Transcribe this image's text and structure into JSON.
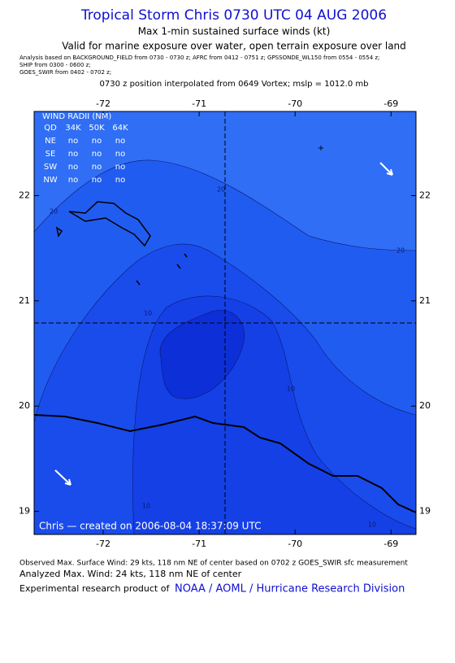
{
  "header": {
    "title": "Tropical Storm Chris 0730 UTC 04 AUG 2006",
    "subtitle": "Max 1-min sustained surface winds (kt)",
    "validity": "Valid for marine exposure over water, open terrain exposure over land",
    "analysis_sources": [
      "Analysis based on  BACKGROUND_FIELD from 0730 - 0730 z;  AFRC from 0412 - 0751 z;  GPSSONDE_WL150 from 0554 - 0554 z;",
      "SHIP from 0300 - 0600 z;",
      "GOES_SWIR from 0402 - 0702 z;"
    ],
    "position_note": "0730 z position interpolated from 0649 Vortex; mslp = 1012.0 mb"
  },
  "map": {
    "xlim": [
      -72.72,
      -68.74
    ],
    "ylim": [
      18.78,
      22.8
    ],
    "xticks": [
      -72,
      -71,
      -70,
      -69
    ],
    "yticks": [
      19,
      20,
      21,
      22
    ],
    "wind_radii": {
      "title": "WIND RADII (NM)",
      "columns": [
        "QD",
        "34K",
        "50K",
        "64K"
      ],
      "rows": [
        [
          "NE",
          "no",
          "no",
          "no"
        ],
        [
          "SE",
          "no",
          "no",
          "no"
        ],
        [
          "SW",
          "no",
          "no",
          "no"
        ],
        [
          "NW",
          "no",
          "no",
          "no"
        ]
      ]
    },
    "contour_labels": [
      20,
      20,
      20,
      10,
      10,
      10,
      10
    ],
    "stamp": "Chris — created on 2006-08-04 18:37:09 UTC"
  },
  "footer": {
    "observed": "Observed Max. Surface Wind: 29 kts, 118 nm NE of center based on 0702 z GOES_SWIR sfc measurement",
    "analyzed": "Analyzed Max. Wind: 24 kts, 118 nm NE of center",
    "credit": "Experimental research product of",
    "link": "NOAA / AOML / Hurricane Research Division"
  }
}
